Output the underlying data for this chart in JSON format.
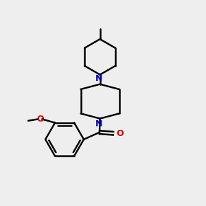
{
  "bg_color": "#eeeeee",
  "bond_color": "#000000",
  "N_color": "#0000cc",
  "O_color": "#cc0000",
  "line_width": 1.8,
  "font_size": 8.5,
  "xlim": [
    0,
    10
  ],
  "ylim": [
    0,
    10
  ]
}
